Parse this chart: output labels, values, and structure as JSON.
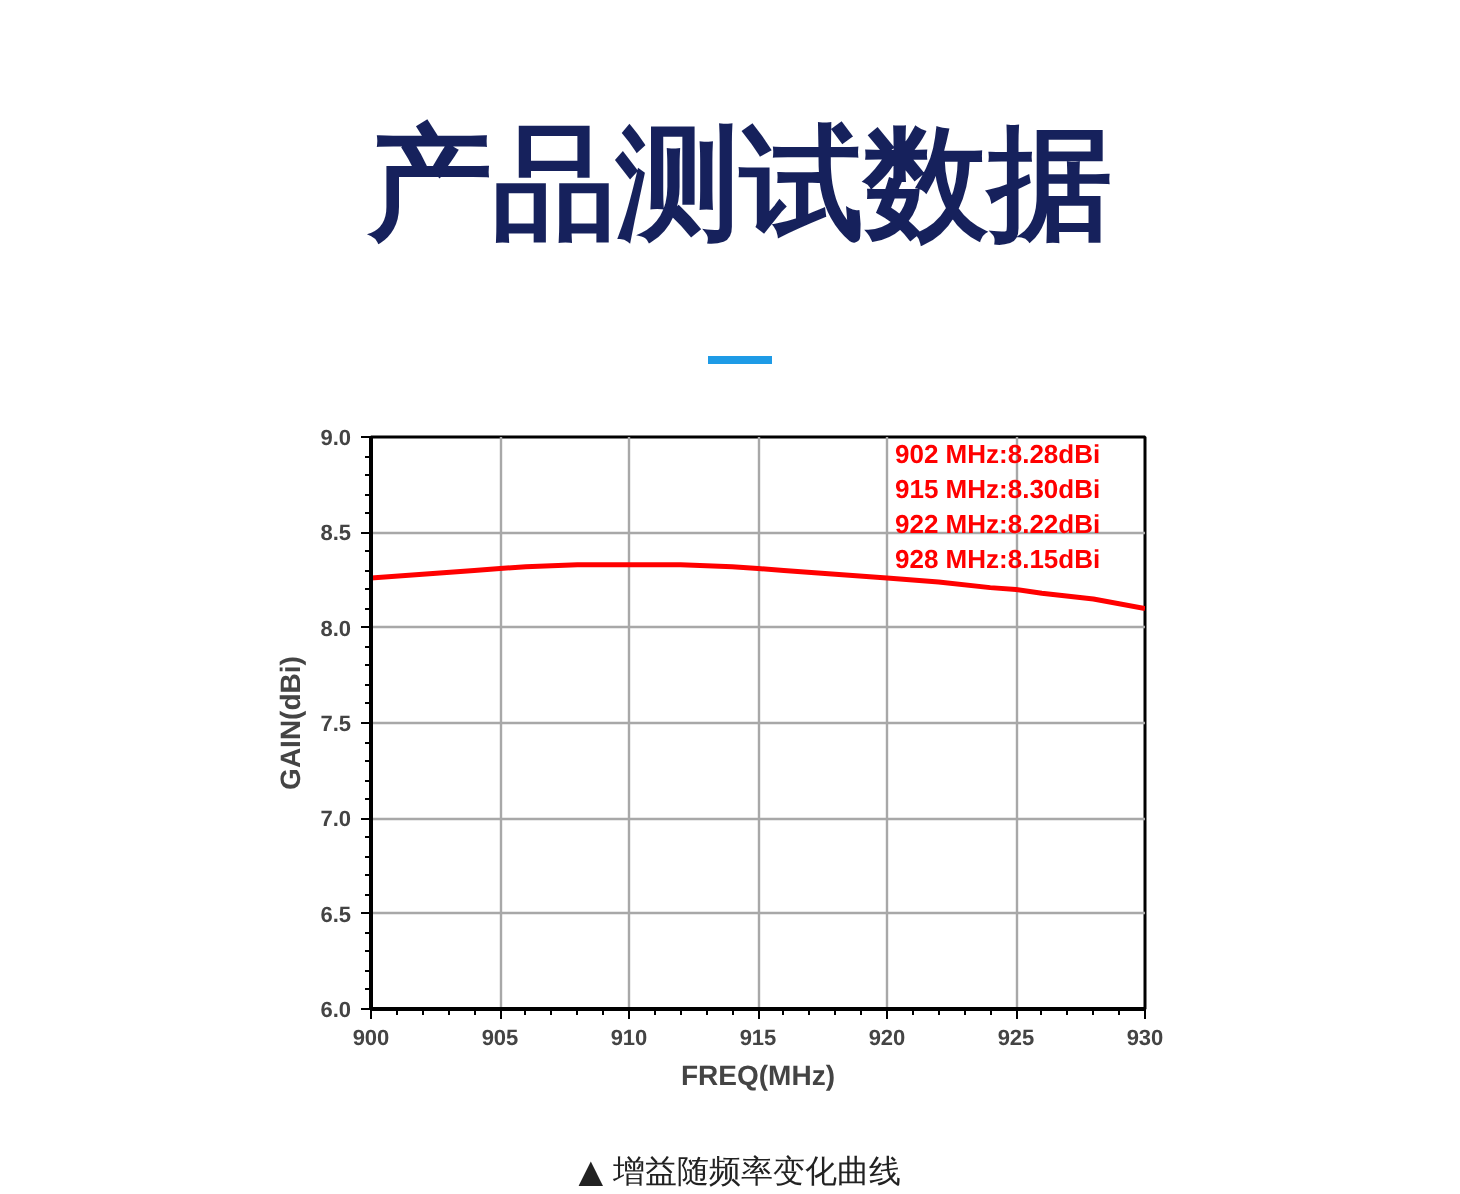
{
  "chart_data": {
    "type": "line",
    "title": "产品测试数据",
    "xlabel": "FREQ(MHz)",
    "ylabel": "GAIN(dBi)",
    "x": [
      900,
      902,
      904,
      905,
      906,
      908,
      910,
      912,
      914,
      915,
      916,
      918,
      920,
      922,
      924,
      925,
      926,
      928,
      930
    ],
    "series": [
      {
        "color": "#ff0000",
        "values": [
          8.26,
          8.28,
          8.3,
          8.31,
          8.32,
          8.33,
          8.33,
          8.33,
          8.32,
          8.31,
          8.3,
          8.28,
          8.26,
          8.24,
          8.21,
          8.2,
          8.18,
          8.15,
          8.1
        ]
      }
    ],
    "xlim": [
      900,
      930
    ],
    "xticks": [
      900,
      905,
      910,
      915,
      920,
      925,
      930
    ],
    "ylim": [
      6.0,
      9.0
    ],
    "yticks": [
      {
        "value": 6,
        "label": "6.0"
      },
      {
        "value": 6.5,
        "label": "6.5"
      },
      {
        "value": 7,
        "label": "7.0"
      },
      {
        "value": 7.5,
        "label": "7.5"
      },
      {
        "value": 8,
        "label": "8.0"
      },
      {
        "value": 8.5,
        "label": "8.5"
      },
      {
        "value": 9,
        "label": "9.0"
      }
    ],
    "grid": true,
    "marker": "none",
    "line_style": "solid",
    "annotations": [
      "902 MHz:8.28dBi",
      "915 MHz:8.30dBi",
      "922 MHz:8.22dBi",
      "928 MHz:8.15dBi",
      "▲ 增益随频率变化曲线"
    ]
  }
}
